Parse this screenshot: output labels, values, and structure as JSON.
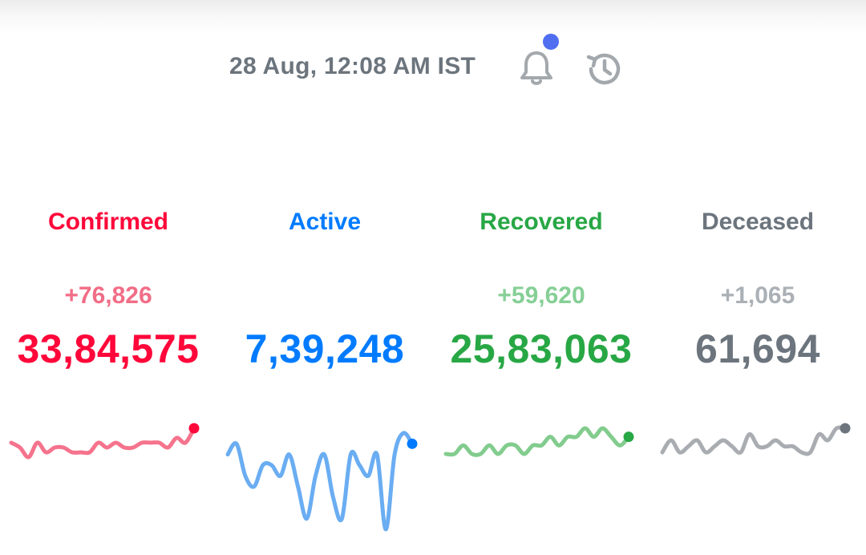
{
  "header": {
    "timestamp": "28 Aug, 12:08 AM IST",
    "bell_icon": "bell-icon",
    "history_icon": "history-icon",
    "icon_color": "#a3a8ad",
    "notification_dot_color": "#4f6ef0"
  },
  "stats": [
    {
      "id": "confirmed",
      "label": "Confirmed",
      "delta": "+76,826",
      "total": "33,84,575",
      "color": "#ff073a",
      "delta_color": "#f26d86",
      "spark_color": "#f5738c",
      "sparkline": [
        5,
        4,
        2,
        5,
        3,
        4,
        4,
        3,
        3,
        3,
        5,
        4,
        5,
        4,
        4,
        5,
        5,
        5,
        4,
        6,
        5,
        8
      ]
    },
    {
      "id": "active",
      "label": "Active",
      "delta": "",
      "total": "7,39,248",
      "color": "#007bff",
      "delta_color": "#66afff",
      "spark_color": "#6aadf2",
      "sparkline": [
        7,
        8,
        5,
        4,
        6,
        6,
        5,
        7,
        4,
        1,
        5,
        7,
        3,
        1,
        7,
        6,
        5,
        7,
        0,
        7,
        9,
        8
      ]
    },
    {
      "id": "recovered",
      "label": "Recovered",
      "delta": "+59,620",
      "total": "25,83,063",
      "color": "#28a745",
      "delta_color": "#86cf96",
      "spark_color": "#82cc8e",
      "sparkline": [
        3,
        3,
        4,
        3,
        3,
        4,
        3,
        4,
        4,
        3,
        4,
        4,
        5,
        4,
        5,
        5,
        6,
        5,
        6,
        5,
        4,
        5
      ]
    },
    {
      "id": "deceased",
      "label": "Deceased",
      "delta": "+1,065",
      "total": "61,694",
      "color": "#6c757d",
      "delta_color": "#aab0b6",
      "spark_color": "#a9adb1",
      "sparkline": [
        3,
        5,
        3,
        4,
        5,
        3,
        4,
        5,
        4,
        3,
        6,
        4,
        4,
        5,
        4,
        4,
        3,
        3,
        6,
        5,
        7,
        7
      ]
    }
  ]
}
